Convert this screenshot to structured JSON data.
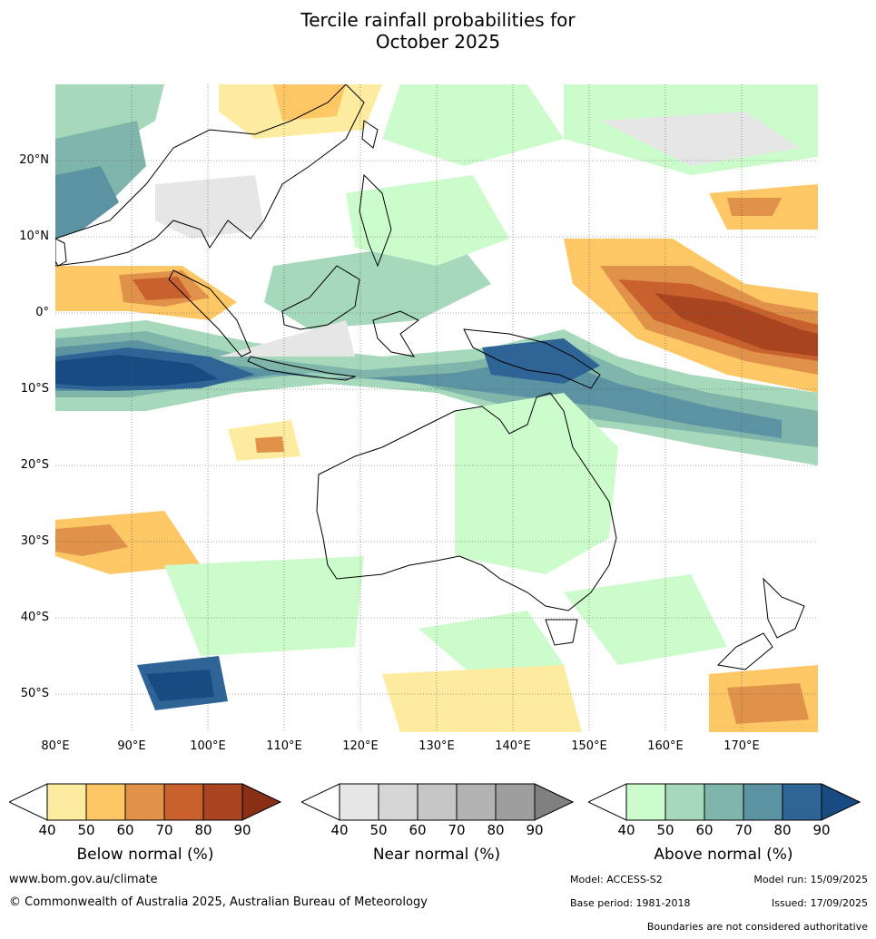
{
  "title_line1": "Tercile rainfall probabilities for",
  "title_line2": "October 2025",
  "map": {
    "lat_labels": [
      "20°N",
      "10°N",
      "0°",
      "10°S",
      "20°S",
      "30°S",
      "40°S",
      "50°S"
    ],
    "lon_labels": [
      "80°E",
      "90°E",
      "100°E",
      "110°E",
      "120°E",
      "130°E",
      "140°E",
      "150°E",
      "160°E",
      "170°E"
    ],
    "region": "Indian Ocean, Maritime Continent, Australia and Western Pacific"
  },
  "legends": {
    "below": {
      "label": "Below normal (%)",
      "ticks": [
        "40",
        "50",
        "60",
        "70",
        "80",
        "90"
      ],
      "colors": [
        "#ffffff",
        "#fdeca0",
        "#fdc765",
        "#e0924a",
        "#c9612f",
        "#a8441f",
        "#8a2e15"
      ]
    },
    "near": {
      "label": "Near normal (%)",
      "ticks": [
        "40",
        "50",
        "60",
        "70",
        "80",
        "90"
      ],
      "colors": [
        "#ffffff",
        "#e6e6e6",
        "#d6d6d6",
        "#c6c6c6",
        "#b3b3b3",
        "#9e9e9e",
        "#808080"
      ]
    },
    "above": {
      "label": "Above normal (%)",
      "ticks": [
        "40",
        "50",
        "60",
        "70",
        "80",
        "90"
      ],
      "colors": [
        "#ffffff",
        "#ccfccc",
        "#a6d9bb",
        "#7fb5aa",
        "#5b93a2",
        "#2e6596",
        "#174b82"
      ]
    }
  },
  "footer": {
    "url": "www.bom.gov.au/climate",
    "copyright": "© Commonwealth of Australia 2025, Australian Bureau of Meteorology",
    "model": "Model: ACCESS-S2",
    "model_run": "Model run: 15/09/2025",
    "base_period": "Base period: 1981-2018",
    "issued": "Issued: 17/09/2025",
    "boundaries": "Boundaries are not considered authoritative"
  }
}
